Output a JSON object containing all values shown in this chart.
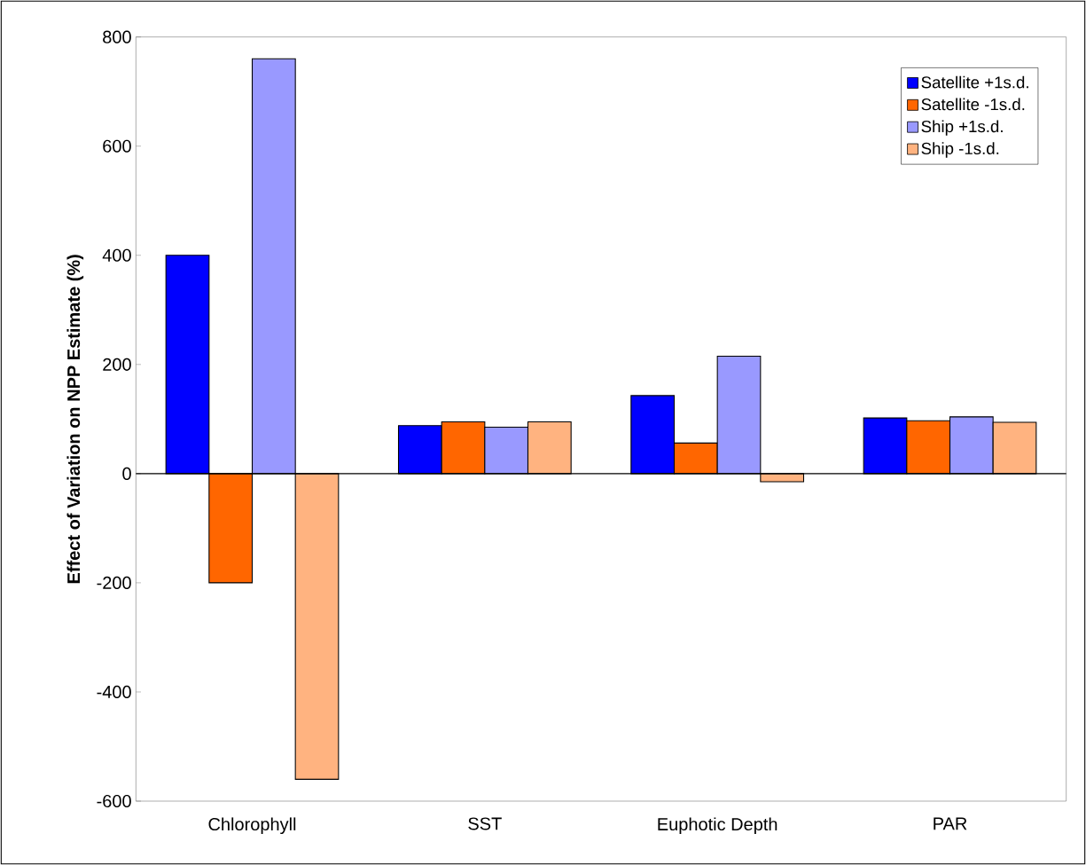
{
  "chart_data": {
    "type": "bar",
    "ylabel": "Effect of Variation on NPP Estimate (%)",
    "categories": [
      "Chlorophyll",
      "SST",
      "Euphotic Depth",
      "PAR"
    ],
    "series": [
      {
        "name": "Satellite +1s.d.",
        "color": "#0000ff",
        "values": [
          400,
          88,
          143,
          102
        ]
      },
      {
        "name": "Satellite -1s.d.",
        "color": "#ff6600",
        "values": [
          -200,
          95,
          56,
          97
        ]
      },
      {
        "name": "Ship +1s.d.",
        "color": "#9999ff",
        "values": [
          760,
          85,
          215,
          104
        ]
      },
      {
        "name": "Ship -1s.d.",
        "color": "#ffb380",
        "values": [
          -560,
          95,
          -15,
          94
        ]
      }
    ],
    "ylim": [
      -600,
      800
    ],
    "yticks": [
      -600,
      -400,
      -200,
      0,
      200,
      400,
      600,
      800
    ],
    "ref_lines": [
      {
        "axis": "y",
        "value": 0,
        "color": "#000000"
      }
    ],
    "grid": false,
    "legend": "top right"
  }
}
